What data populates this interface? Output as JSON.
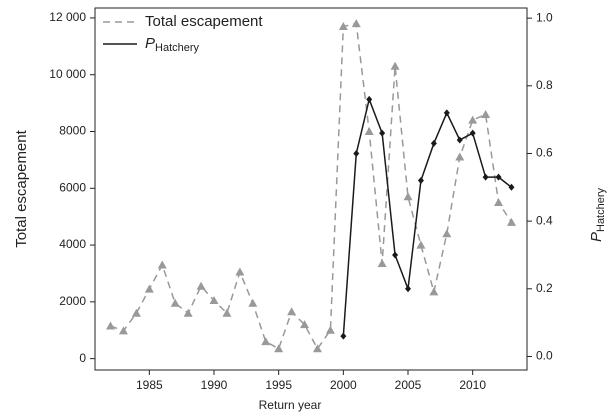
{
  "chart_data": {
    "type": "line",
    "xlabel": "Return year",
    "ylabel": "Total escapement",
    "y2label": "P",
    "y2label_subscript": "Hatchery",
    "x": [
      1982,
      1983,
      1984,
      1985,
      1986,
      1987,
      1988,
      1989,
      1990,
      1991,
      1992,
      1993,
      1994,
      1995,
      1996,
      1997,
      1998,
      1999,
      2000,
      2001,
      2002,
      2003,
      2004,
      2005,
      2006,
      2007,
      2008,
      2009,
      2010,
      2011,
      2012,
      2013
    ],
    "series": [
      {
        "name": "Total escapement",
        "color": "#999999",
        "dash": true,
        "marker": "triangle",
        "values": [
          1150,
          980,
          1600,
          2450,
          3300,
          1950,
          1600,
          2550,
          2050,
          1600,
          3050,
          1950,
          600,
          350,
          1650,
          1200,
          350,
          1000,
          11700,
          11800,
          8000,
          3350,
          10300,
          5700,
          4000,
          2350,
          4400,
          7100,
          8400,
          8600,
          5500,
          4800
        ]
      },
      {
        "name": "P",
        "name_subscript": "Hatchery",
        "color": "#1a1a1a",
        "dash": false,
        "marker": "diamond",
        "axis": "y2",
        "values": [
          null,
          null,
          null,
          null,
          null,
          null,
          null,
          null,
          null,
          null,
          null,
          null,
          null,
          null,
          null,
          null,
          null,
          null,
          0.06,
          0.6,
          0.76,
          0.66,
          0.3,
          0.2,
          0.52,
          0.63,
          0.72,
          0.64,
          0.66,
          0.53,
          0.53,
          0.5
        ]
      }
    ],
    "xlim": [
      1980.8,
      2014.2
    ],
    "xticks": [
      1985,
      1990,
      1995,
      2000,
      2005,
      2010
    ],
    "ylim": [
      -400,
      12350
    ],
    "yticks": [
      0,
      2000,
      4000,
      6000,
      8000,
      {
        "value": 10000,
        "label": "10 000"
      },
      {
        "value": 12000,
        "label": "12 000"
      }
    ],
    "y2lim": [
      -0.04,
      1.03
    ],
    "y2ticks": [
      {
        "value": 0,
        "label": "0.0"
      },
      0.2,
      0.4,
      0.6,
      0.8,
      {
        "value": 1,
        "label": "1.0"
      }
    ],
    "legend": "upper left"
  }
}
